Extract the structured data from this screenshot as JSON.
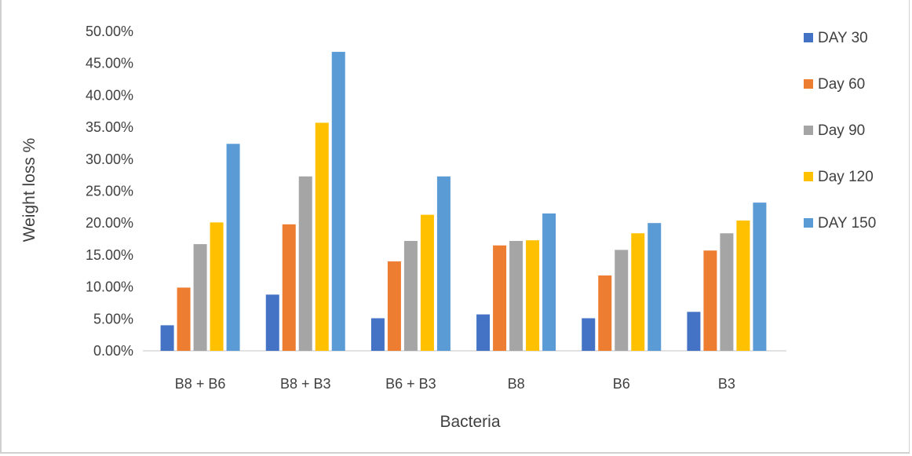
{
  "chart_data": {
    "type": "bar",
    "title": "",
    "xlabel": "Bacteria",
    "ylabel": "Weight loss %",
    "categories": [
      "B8 + B6",
      "B8 + B3",
      "B6 + B3",
      "B8",
      "B6",
      "B3"
    ],
    "ylim": [
      0,
      0.5
    ],
    "yticks": [
      0,
      0.05,
      0.1,
      0.15,
      0.2,
      0.25,
      0.3,
      0.35,
      0.4,
      0.45,
      0.5
    ],
    "ytick_labels": [
      "0.00%",
      "5.00%",
      "10.00%",
      "15.00%",
      "20.00%",
      "25.00%",
      "30.00%",
      "35.00%",
      "40.00%",
      "45.00%",
      "50.00%"
    ],
    "grid": false,
    "legend_position": "right",
    "series": [
      {
        "name": "DAY 30",
        "color": "#4472c4",
        "values": [
          0.04,
          0.088,
          0.051,
          0.057,
          0.051,
          0.061
        ]
      },
      {
        "name": "Day 60",
        "color": "#ed7d31",
        "values": [
          0.099,
          0.198,
          0.14,
          0.165,
          0.118,
          0.157
        ]
      },
      {
        "name": "Day 90",
        "color": "#a5a5a5",
        "values": [
          0.167,
          0.273,
          0.172,
          0.172,
          0.158,
          0.184
        ]
      },
      {
        "name": "Day 120",
        "color": "#ffc000",
        "values": [
          0.201,
          0.357,
          0.213,
          0.173,
          0.184,
          0.204
        ]
      },
      {
        "name": "DAY 150",
        "color": "#5b9bd5",
        "values": [
          0.324,
          0.468,
          0.273,
          0.215,
          0.2,
          0.232
        ]
      }
    ]
  }
}
